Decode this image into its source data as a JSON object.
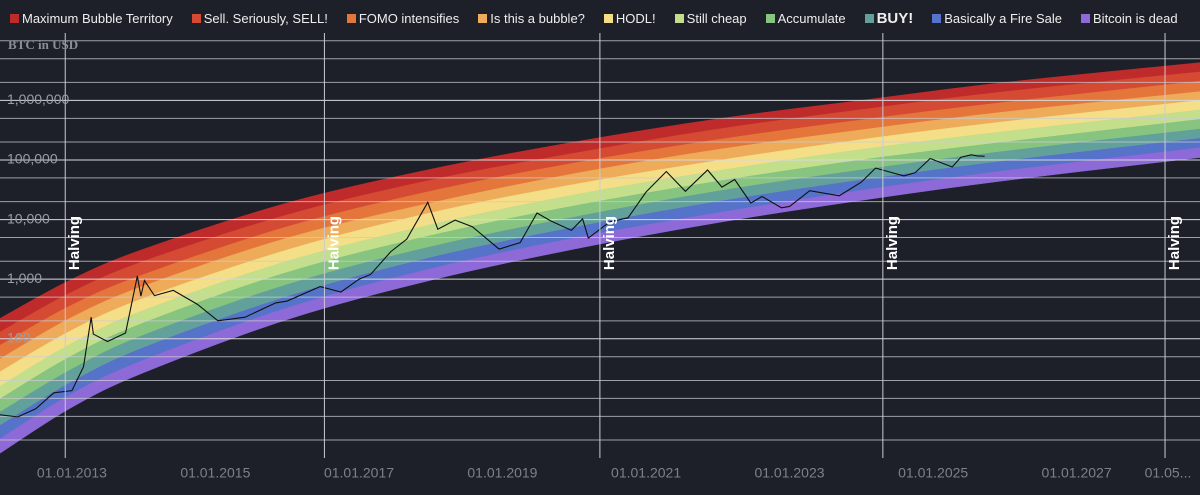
{
  "chart_data": {
    "type": "rainbow",
    "y_label": "BTC in USD",
    "log_scale": true,
    "grid": true,
    "xlim": [
      "2012-01-01",
      "2028-09-20"
    ],
    "ylim": [
      1,
      13500000
    ],
    "yticks": [
      100,
      {
        "value": 1000,
        "label": "1,000"
      },
      {
        "value": 10000,
        "label": "10,000"
      },
      {
        "value": 100000,
        "label": "100,000"
      },
      {
        "value": 1000000,
        "label": "1,000,000"
      }
    ],
    "yminor": [
      2,
      5,
      10,
      20,
      50,
      200,
      500,
      2000,
      5000,
      20000,
      50000,
      200000,
      500000,
      2000000,
      5000000,
      10000000
    ],
    "xticks": [
      {
        "value": "2013-01-01",
        "label": "01.01.2013"
      },
      {
        "value": "2015-01-01",
        "label": "01.01.2015"
      },
      {
        "value": "2017-01-01",
        "label": "01.01.2017"
      },
      {
        "value": "2019-01-01",
        "label": "01.01.2019"
      },
      {
        "value": "2021-01-01",
        "label": "01.01.2021"
      },
      {
        "value": "2023-01-01",
        "label": "01.01.2023"
      },
      {
        "value": "2025-01-01",
        "label": "01.01.2025"
      },
      {
        "value": "2027-01-01",
        "label": "01.01.2027"
      },
      {
        "value": "2028-05-01",
        "label": "01.05..."
      }
    ],
    "x": [
      "2012-01-01",
      "2013-01-01",
      "2014-01-01",
      "2016-01-01",
      "2018-01-01",
      "2020-01-01",
      "2022-01-01",
      "2024-01-01",
      "2026-01-01",
      "2028-09-20"
    ],
    "series": [
      {
        "name": "Maximum Bubble Territory",
        "color": "#bf2b2b",
        "values": [
          220,
          1000,
          3200,
          19000,
          70000,
          200000,
          490000,
          1000000,
          2000000,
          4300000
        ]
      },
      {
        "name": "Sell. Seriously, SELL!",
        "color": "#d44a32",
        "values": [
          130,
          610,
          2000,
          12000,
          46000,
          130000,
          330000,
          700000,
          1400000,
          3000000
        ]
      },
      {
        "name": "FOMO intensifies",
        "color": "#e4763c",
        "values": [
          78,
          370,
          1200,
          7600,
          30000,
          89000,
          220000,
          470000,
          930000,
          2100000
        ]
      },
      {
        "name": "Is this a bubble?",
        "color": "#eeac5a",
        "values": [
          46,
          230,
          770,
          4900,
          19000,
          59000,
          150000,
          320000,
          640000,
          1400000
        ]
      },
      {
        "name": "HODL!",
        "color": "#f5de88",
        "values": [
          28,
          140,
          480,
          3100,
          13000,
          39000,
          98000,
          220000,
          440000,
          1000000
        ]
      },
      {
        "name": "Still cheap",
        "color": "#c3df8c",
        "values": [
          16,
          84,
          300,
          2000,
          8200,
          26000,
          66000,
          150000,
          300000,
          690000
        ]
      },
      {
        "name": "Accumulate",
        "color": "#86c47f",
        "values": [
          9.8,
          52,
          185,
          1300,
          5400,
          17000,
          44000,
          100000,
          200000,
          480000
        ]
      },
      {
        "name": "BUY!",
        "color": "#62a09c",
        "values": [
          5.9,
          31,
          115,
          810,
          3500,
          11000,
          30000,
          68000,
          140000,
          330000
        ]
      },
      {
        "name": "Basically a Fire Sale",
        "color": "#5573c8",
        "values": [
          3.5,
          19,
          71,
          510,
          2300,
          7400,
          20000,
          46000,
          96000,
          230000
        ]
      },
      {
        "name": "Bitcoin is dead",
        "color": "#8e69d8",
        "values": [
          2.1,
          12,
          44,
          330,
          1500,
          4900,
          13000,
          31000,
          66000,
          160000
        ]
      }
    ],
    "floor": [
      1.2,
      7.1,
      27,
      210,
      960,
      3200,
      8900,
      21000,
      45000,
      110000
    ],
    "price": {
      "color": "#111111",
      "x": [
        "2012-01-01",
        "2012-04-01",
        "2012-07-01",
        "2012-10-01",
        "2013-01-01",
        "2013-03-01",
        "2013-04-09",
        "2013-04-20",
        "2013-07-01",
        "2013-10-01",
        "2013-11-30",
        "2013-12-18",
        "2014-01-05",
        "2014-02-25",
        "2014-06-01",
        "2014-10-01",
        "2015-01-14",
        "2015-06-01",
        "2015-11-04",
        "2016-01-01",
        "2016-06-17",
        "2016-10-01",
        "2017-01-01",
        "2017-03-01",
        "2017-06-12",
        "2017-09-01",
        "2017-12-17",
        "2018-02-06",
        "2018-05-05",
        "2018-08-01",
        "2018-12-15",
        "2019-04-01",
        "2019-06-26",
        "2019-09-01",
        "2019-12-18",
        "2020-02-13",
        "2020-03-13",
        "2020-07-01",
        "2020-10-01",
        "2021-01-01",
        "2021-04-14",
        "2021-07-20",
        "2021-11-10",
        "2022-01-22",
        "2022-03-28",
        "2022-06-18",
        "2022-08-14",
        "2022-11-21",
        "2023-01-01",
        "2023-04-14",
        "2023-09-11",
        "2024-01-01",
        "2024-03-14",
        "2024-08-05",
        "2024-10-01",
        "2024-12-17",
        "2025-04-08",
        "2025-05-22",
        "2025-07-14",
        "2025-08-15",
        "2025-09-20"
      ],
      "values": [
        5.3,
        4.9,
        6.7,
        12.4,
        13.5,
        34,
        230,
        120,
        90,
        125,
        1130,
        520,
        950,
        530,
        650,
        380,
        200,
        230,
        400,
        430,
        750,
        610,
        1000,
        1200,
        2900,
        4700,
        19500,
        6900,
        9800,
        7600,
        3200,
        4100,
        12900,
        9600,
        6600,
        10300,
        4900,
        9200,
        10700,
        29000,
        64000,
        29800,
        68000,
        35000,
        47000,
        19000,
        24400,
        15800,
        16600,
        30500,
        25100,
        42300,
        73000,
        54000,
        61000,
        106000,
        76300,
        111000,
        122000,
        117000,
        115000
      ]
    },
    "annotations": [
      {
        "x": "2012-11-28",
        "label": "Halving"
      },
      {
        "x": "2016-07-09",
        "label": "Halving"
      },
      {
        "x": "2020-05-11",
        "label": "Halving"
      },
      {
        "x": "2024-04-20",
        "label": "Halving"
      },
      {
        "x": "2028-03-26",
        "label": "Halving"
      }
    ]
  }
}
